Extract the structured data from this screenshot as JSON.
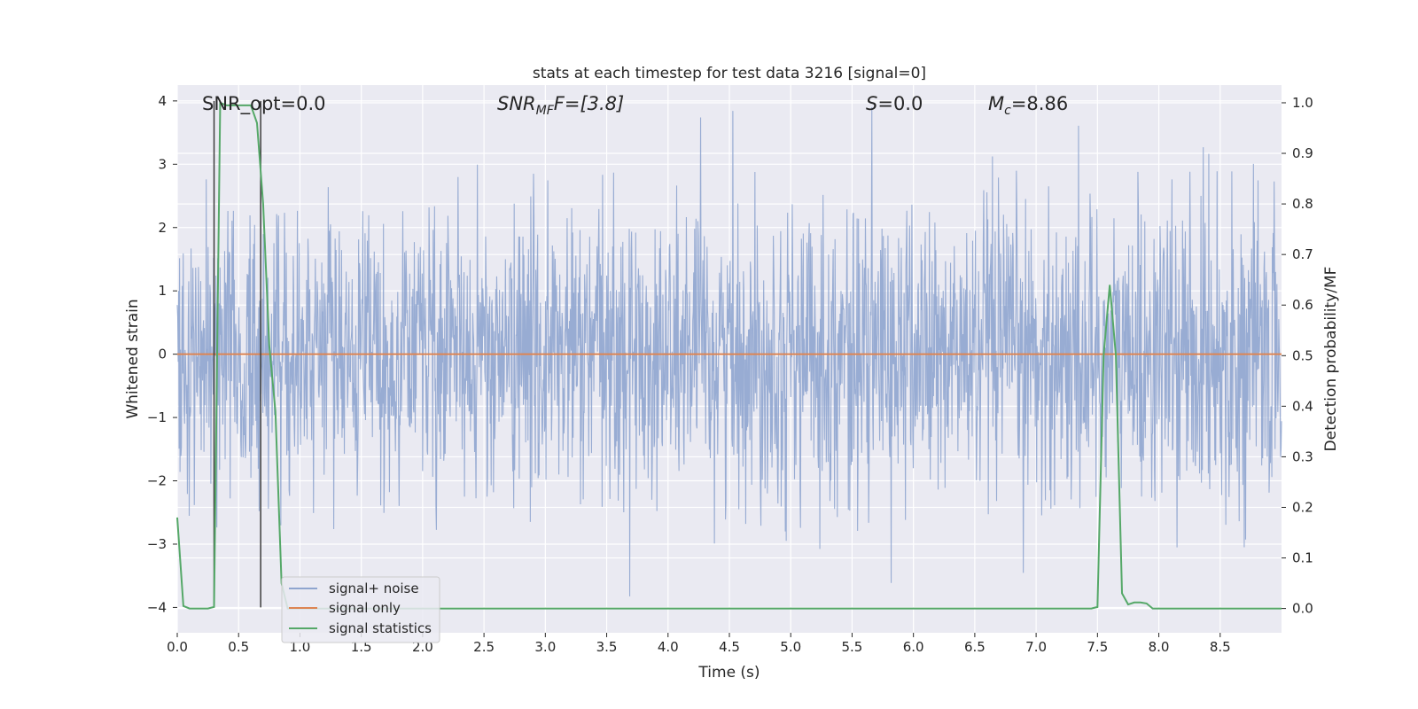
{
  "chart_data": {
    "type": "line",
    "title": "stats at each timestep for test data 3216 [signal=0]",
    "xlabel": "Time (s)",
    "ylabel": "Whitened strain",
    "y2label": "Detection probability/MF",
    "xlim": [
      0.0,
      9.0
    ],
    "ylim": [
      -4.4,
      4.25
    ],
    "y2lim": [
      -0.048,
      1.035
    ],
    "xticks": [
      0.0,
      0.5,
      1.0,
      1.5,
      2.0,
      2.5,
      3.0,
      3.5,
      4.0,
      4.5,
      5.0,
      5.5,
      6.0,
      6.5,
      7.0,
      7.5,
      8.0,
      8.5
    ],
    "xtick_labels": [
      "0.0",
      "0.5",
      "1.0",
      "1.5",
      "2.0",
      "2.5",
      "3.0",
      "3.5",
      "4.0",
      "4.5",
      "5.0",
      "5.5",
      "6.0",
      "6.5",
      "7.0",
      "7.5",
      "8.0",
      "8.5"
    ],
    "yticks": [
      4,
      3,
      2,
      1,
      0,
      -1,
      -2,
      -3,
      -4
    ],
    "ytick_labels": [
      "4",
      "3",
      "2",
      "1",
      "0",
      "−1",
      "−2",
      "−3",
      "−4"
    ],
    "y2ticks": [
      1.0,
      0.9,
      0.8,
      0.7,
      0.6,
      0.5,
      0.4,
      0.3,
      0.2,
      0.1,
      0.0
    ],
    "y2tick_labels": [
      "1.0",
      "0.9",
      "0.8",
      "0.7",
      "0.6",
      "0.5",
      "0.4",
      "0.3",
      "0.2",
      "0.1",
      "0.0"
    ],
    "grid": true,
    "legend_position": "bottom-left",
    "annotations": {
      "snr_opt": "SNR_opt=0.0",
      "snr_mf_main": "SNR",
      "snr_mf_sub": "MF",
      "snr_mf_value": "F=[3.8]",
      "s_italic": "S",
      "s_value": "=0.0",
      "mc_main": "M",
      "mc_sub": "c",
      "mc_value": "=8.86"
    },
    "series": [
      {
        "name": "signal+ noise",
        "color": "#8fa5cf",
        "description_values": "whitened noise, spans roughly -4 to 4 across 0-9 s"
      },
      {
        "name": "signal only",
        "color": "#dd8452",
        "x": [
          0.0,
          9.0
        ],
        "y": [
          0.0,
          0.0
        ]
      },
      {
        "name": "signal statistics",
        "color": "#55a868",
        "axis": "right",
        "x": [
          0.0,
          0.05,
          0.1,
          0.15,
          0.2,
          0.25,
          0.3,
          0.35,
          0.4,
          0.45,
          0.5,
          0.55,
          0.6,
          0.65,
          0.7,
          0.75,
          0.8,
          0.85,
          0.9,
          0.95,
          1.0,
          7.4,
          7.45,
          7.5,
          7.55,
          7.6,
          7.65,
          7.7,
          7.75,
          7.8,
          7.85,
          7.9,
          7.95,
          8.0,
          9.0
        ],
        "y": [
          0.18,
          0.005,
          0.0,
          0.0,
          0.0,
          0.0,
          0.003,
          1.0,
          0.995,
          0.995,
          0.995,
          0.995,
          0.995,
          0.96,
          0.8,
          0.52,
          0.39,
          0.05,
          0.0,
          0.0,
          0.0,
          0.0,
          0.0,
          0.003,
          0.5,
          0.64,
          0.5,
          0.03,
          0.008,
          0.012,
          0.012,
          0.01,
          0.0,
          0.0,
          0.0
        ]
      }
    ],
    "vertical_lines": {
      "x": [
        0.3,
        0.68
      ],
      "color": "#3c3c3c"
    }
  },
  "legend": {
    "items": [
      "signal+ noise",
      "signal only",
      "signal statistics"
    ]
  },
  "colors": {
    "plot_bg": "#eaeaf2",
    "grid": "#ffffff",
    "noise": "#8fa5cf",
    "signal": "#dd8452",
    "stats": "#55a868"
  }
}
